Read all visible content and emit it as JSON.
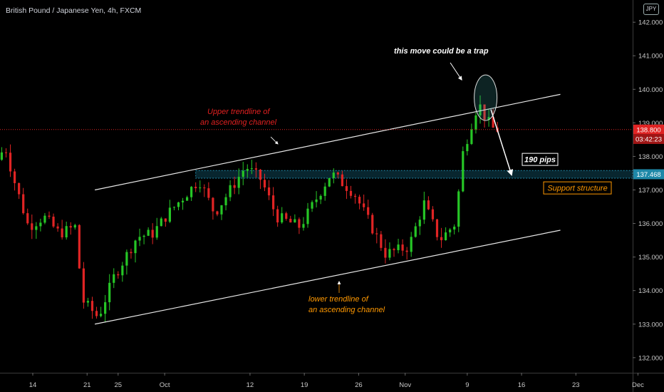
{
  "header": {
    "title": "British Pound / Japanese Yen, 4h, FXCM",
    "currency_tag": "JPY"
  },
  "colors": {
    "background": "#000000",
    "up_candle": "#26c626",
    "down_candle": "#e02424",
    "trendline": "#e8e8e8",
    "red_note": "#e02020",
    "orange_note": "#ff9800",
    "support_zone": "#1e88a8",
    "price_line": "#e02424"
  },
  "chart_data": {
    "type": "candlestick",
    "instrument": "British Pound / Japanese Yen",
    "timeframe": "4h",
    "source": "FXCM",
    "y_ticks": [
      132.0,
      133.0,
      134.0,
      135.0,
      136.0,
      137.0,
      138.0,
      139.0,
      140.0,
      141.0,
      142.0
    ],
    "y_tick_labels": [
      "132.000",
      "133.000",
      "134.000",
      "135.000",
      "136.000",
      "137.000",
      "138.000",
      "139.000",
      "140.000",
      "141.000",
      "142.000"
    ],
    "x_tick_labels": [
      "14",
      "21",
      "25",
      "Oct",
      "12",
      "19",
      "26",
      "Nov",
      "9",
      "16",
      "23",
      "Dec"
    ],
    "price_path": [
      {
        "t": "Sep 10",
        "p": 137.9
      },
      {
        "t": "Sep 11",
        "p": 138.3
      },
      {
        "t": "Sep 12",
        "p": 137.4
      },
      {
        "t": "Sep 14",
        "p": 135.9
      },
      {
        "t": "Sep 16",
        "p": 136.2
      },
      {
        "t": "Sep 18",
        "p": 135.7
      },
      {
        "t": "Sep 20",
        "p": 135.9
      },
      {
        "t": "Sep 21",
        "p": 133.7
      },
      {
        "t": "Sep 23",
        "p": 133.2
      },
      {
        "t": "Sep 25",
        "p": 134.4
      },
      {
        "t": "Sep 28",
        "p": 135.6
      },
      {
        "t": "Sep 30",
        "p": 135.7
      },
      {
        "t": "Oct 2",
        "p": 136.3
      },
      {
        "t": "Oct 6",
        "p": 137.3
      },
      {
        "t": "Oct 8",
        "p": 136.3
      },
      {
        "t": "Oct 10",
        "p": 137.0
      },
      {
        "t": "Oct 12",
        "p": 137.7
      },
      {
        "t": "Oct 14",
        "p": 137.3
      },
      {
        "t": "Oct 16",
        "p": 136.2
      },
      {
        "t": "Oct 19",
        "p": 135.9
      },
      {
        "t": "Oct 21",
        "p": 136.7
      },
      {
        "t": "Oct 23",
        "p": 137.5
      },
      {
        "t": "Oct 26",
        "p": 136.9
      },
      {
        "t": "Oct 28",
        "p": 136.0
      },
      {
        "t": "Oct 30",
        "p": 135.1
      },
      {
        "t": "Nov 2",
        "p": 135.3
      },
      {
        "t": "Nov 4",
        "p": 136.6
      },
      {
        "t": "Nov 6",
        "p": 135.5
      },
      {
        "t": "Nov 8",
        "p": 136.0
      },
      {
        "t": "Nov 9",
        "p": 138.1
      },
      {
        "t": "Nov 10",
        "p": 138.9
      },
      {
        "t": "Nov 11",
        "p": 139.6
      },
      {
        "t": "Nov 12",
        "p": 139.1
      },
      {
        "t": "Nov 13",
        "p": 138.8
      }
    ],
    "channel": {
      "upper": [
        {
          "t": "Sep 22",
          "p": 137.0
        },
        {
          "t": "Nov 21",
          "p": 139.85
        }
      ],
      "lower": [
        {
          "t": "Sep 22",
          "p": 133.0
        },
        {
          "t": "Nov 21",
          "p": 135.8
        }
      ]
    },
    "support_zone": {
      "low": 137.35,
      "high": 137.58,
      "from": "Oct 5"
    },
    "price_markers": [
      {
        "label": "138.800",
        "value": 138.8,
        "style": "red"
      },
      {
        "label": "03:42:23",
        "value": 138.5,
        "style": "dark-red"
      },
      {
        "label": "137.468",
        "value": 137.468,
        "style": "blue"
      }
    ],
    "annotations": [
      {
        "text": "this move could be a trap",
        "color": "white"
      },
      {
        "text": "Upper trendline of",
        "color": "red"
      },
      {
        "text": "an ascending channel",
        "color": "red"
      },
      {
        "text": "lower trendline of",
        "color": "orange"
      },
      {
        "text": "an ascending channel",
        "color": "orange"
      },
      {
        "text": "190 pips",
        "color": "white-box"
      },
      {
        "text": "Support structure",
        "color": "orange-box"
      }
    ]
  }
}
